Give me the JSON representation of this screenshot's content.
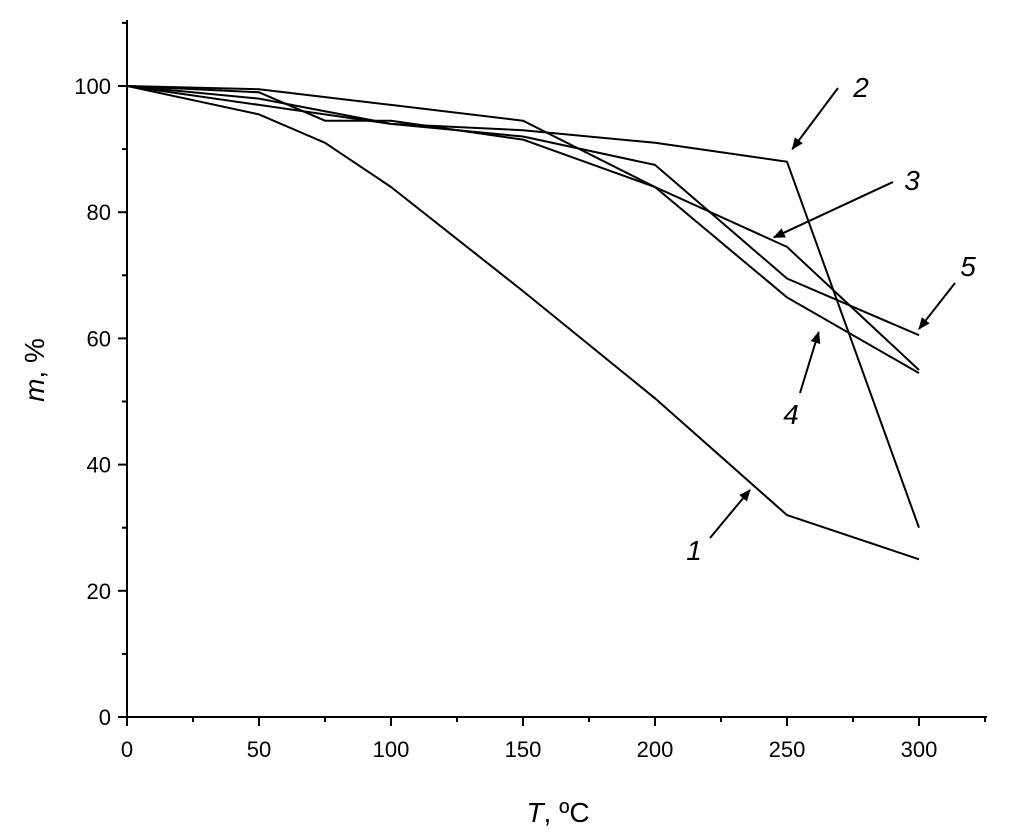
{
  "chart_data": {
    "type": "line",
    "xlabel_var": "T",
    "xlabel_unit": ", ºC",
    "ylabel_var": "m",
    "ylabel_unit": ", %",
    "xlim": [
      0,
      325
    ],
    "ylim": [
      0,
      110
    ],
    "xticks": [
      0,
      50,
      100,
      150,
      200,
      250,
      300
    ],
    "yticks": [
      0,
      20,
      40,
      60,
      80,
      100
    ],
    "grid": false,
    "series": [
      {
        "name": "1",
        "x": [
          0,
          50,
          75,
          100,
          150,
          200,
          250,
          300
        ],
        "y": [
          100,
          95.5,
          91,
          84,
          67.5,
          50.5,
          32,
          25
        ]
      },
      {
        "name": "2",
        "x": [
          0,
          50,
          100,
          150,
          200,
          250,
          300
        ],
        "y": [
          100,
          98,
          94,
          93,
          91,
          88,
          30
        ]
      },
      {
        "name": "3",
        "x": [
          0,
          50,
          100,
          150,
          200,
          250,
          300
        ],
        "y": [
          100,
          99.5,
          97,
          94.5,
          84,
          74.5,
          55
        ]
      },
      {
        "name": "4",
        "x": [
          0,
          50,
          75,
          100,
          150,
          200,
          250,
          300
        ],
        "y": [
          100,
          99,
          94.5,
          94.5,
          91.5,
          84,
          66.5,
          54.5
        ]
      },
      {
        "name": "5",
        "x": [
          0,
          50,
          100,
          150,
          200,
          250,
          300
        ],
        "y": [
          100,
          97,
          94,
          92,
          87.5,
          69.5,
          60.5
        ]
      }
    ],
    "annotations": [
      {
        "text": "1",
        "arrow_to": [
          236,
          36
        ]
      },
      {
        "text": "2",
        "arrow_to": [
          252,
          90
        ]
      },
      {
        "text": "3",
        "arrow_to": [
          245,
          76
        ]
      },
      {
        "text": "4",
        "arrow_to": [
          262,
          61
        ]
      },
      {
        "text": "5",
        "arrow_to": [
          300,
          61.5
        ]
      }
    ]
  }
}
